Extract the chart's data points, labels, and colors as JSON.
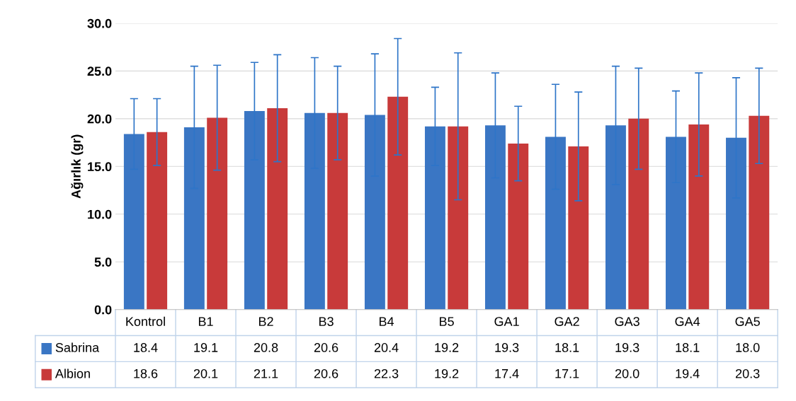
{
  "chart_data": {
    "type": "bar",
    "ylabel": "Ağırlık (gr)",
    "categories": [
      "Kontrol",
      "B1",
      "B2",
      "B3",
      "B4",
      "B5",
      "GA1",
      "GA2",
      "GA3",
      "GA4",
      "GA5"
    ],
    "series": [
      {
        "name": "Sabrina",
        "color": "#3a76c4",
        "values": [
          18.4,
          19.1,
          20.8,
          20.6,
          20.4,
          19.2,
          19.3,
          18.1,
          19.3,
          18.1,
          18.0
        ],
        "errors": [
          3.7,
          6.4,
          5.1,
          5.8,
          6.4,
          4.1,
          5.5,
          5.5,
          6.2,
          4.8,
          6.3
        ],
        "value_labels": [
          "18.4",
          "19.1",
          "20.8",
          "20.6",
          "20.4",
          "19.2",
          "19.3",
          "18.1",
          "19.3",
          "18.1",
          "18.0"
        ]
      },
      {
        "name": "Albion",
        "color": "#c83a3a",
        "values": [
          18.6,
          20.1,
          21.1,
          20.6,
          22.3,
          19.2,
          17.4,
          17.1,
          20.0,
          19.4,
          20.3
        ],
        "errors": [
          3.5,
          5.5,
          5.6,
          4.9,
          6.1,
          7.7,
          3.9,
          5.7,
          5.3,
          5.4,
          5.0
        ],
        "value_labels": [
          "18.6",
          "20.1",
          "21.1",
          "20.6",
          "22.3",
          "19.2",
          "17.4",
          "17.1",
          "20.0",
          "19.4",
          "20.3"
        ]
      }
    ],
    "ylim": [
      0,
      30
    ],
    "yticks": [
      {
        "value": 0,
        "label": "0.0"
      },
      {
        "value": 5,
        "label": "5.0"
      },
      {
        "value": 10,
        "label": "10.0"
      },
      {
        "value": 15,
        "label": "15.0"
      },
      {
        "value": 20,
        "label": "20.0"
      },
      {
        "value": 25,
        "label": "25.0"
      },
      {
        "value": 30,
        "label": "30.0"
      }
    ],
    "grid": "y",
    "legend": "bottom"
  }
}
